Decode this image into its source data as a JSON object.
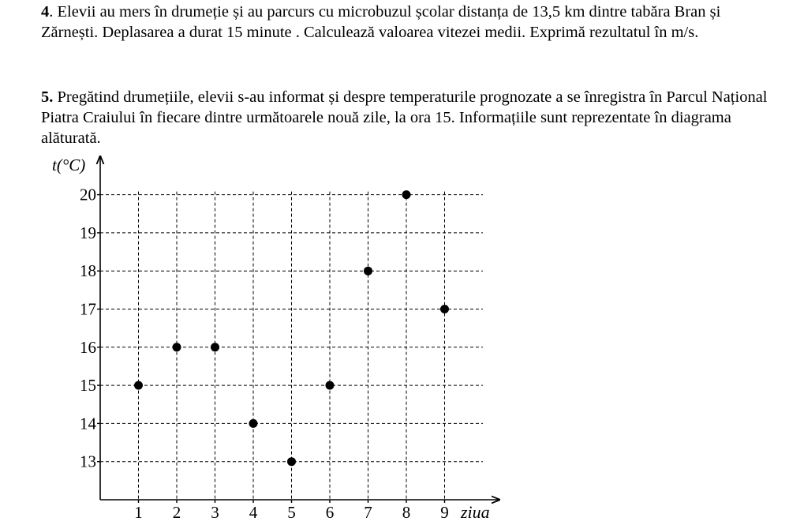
{
  "problems": [
    {
      "number": "4",
      "text": ". Elevii au mers în drumeție și au parcurs cu microbuzul școlar distanța de 13,5 km dintre tabăra Bran și Zărnești. Deplasarea a durat 15 minute . Calculează valoarea vitezei medii. Exprimă rezultatul în m/s."
    },
    {
      "number": "5.",
      "text": " Pregătind drumețiile, elevii s-au informat și despre temperaturile prognozate a se înregistra în Parcul Național Piatra Craiului în fiecare dintre următoarele nouă zile, la ora 15. Informațiile sunt reprezentate în diagrama alăturată."
    }
  ],
  "chart_data": {
    "type": "scatter",
    "title": "",
    "xlabel": "ziua",
    "ylabel": "t(°C)",
    "x": [
      1,
      2,
      3,
      4,
      5,
      6,
      7,
      8,
      9
    ],
    "y": [
      15,
      16,
      16,
      14,
      13,
      15,
      18,
      20,
      17
    ],
    "x_ticks": [
      "1",
      "2",
      "3",
      "4",
      "5",
      "6",
      "7",
      "8",
      "9"
    ],
    "y_ticks": [
      "13",
      "14",
      "15",
      "16",
      "17",
      "18",
      "19",
      "20"
    ],
    "xlim": [
      0,
      9.9
    ],
    "ylim": [
      12,
      20.2
    ],
    "grid": "dashed",
    "marker_color": "#000000"
  }
}
